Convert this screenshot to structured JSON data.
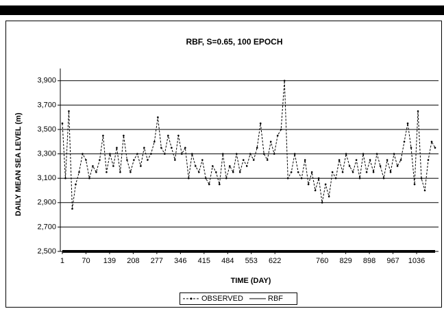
{
  "chart_data": {
    "type": "line",
    "title": "RBF, S=0.65, 100 EPOCH",
    "x_label": "TIME (DAY)",
    "y_label": "DAILY MEAN SEA LEVEL (m)",
    "x": [
      1,
      10,
      20,
      30,
      40,
      50,
      60,
      70,
      80,
      90,
      100,
      110,
      120,
      130,
      140,
      150,
      160,
      170,
      180,
      190,
      200,
      210,
      220,
      230,
      240,
      250,
      260,
      270,
      280,
      290,
      300,
      310,
      320,
      330,
      340,
      350,
      360,
      370,
      380,
      390,
      400,
      410,
      420,
      430,
      440,
      450,
      460,
      470,
      480,
      490,
      500,
      510,
      520,
      530,
      540,
      550,
      560,
      570,
      580,
      590,
      600,
      610,
      620,
      630,
      640,
      650,
      660,
      670,
      680,
      690,
      700,
      710,
      720,
      730,
      740,
      750,
      760,
      770,
      780,
      790,
      800,
      810,
      820,
      830,
      840,
      850,
      860,
      870,
      880,
      890,
      900,
      910,
      920,
      930,
      940,
      950,
      960,
      970,
      980,
      990,
      1000,
      1010,
      1020,
      1030,
      1040,
      1050,
      1060,
      1070,
      1080,
      1090
    ],
    "series": [
      {
        "name": "OBSERVED",
        "color": "#000000",
        "values": [
          3550,
          3100,
          3650,
          2850,
          3050,
          3150,
          3300,
          3250,
          3100,
          3200,
          3150,
          3250,
          3450,
          3150,
          3300,
          3200,
          3350,
          3150,
          3450,
          3250,
          3150,
          3250,
          3300,
          3200,
          3350,
          3250,
          3300,
          3400,
          3600,
          3350,
          3300,
          3450,
          3350,
          3250,
          3450,
          3300,
          3350,
          3100,
          3300,
          3200,
          3150,
          3250,
          3100,
          3050,
          3200,
          3150,
          3050,
          3300,
          3100,
          3200,
          3150,
          3300,
          3150,
          3250,
          3200,
          3300,
          3250,
          3350,
          3550,
          3300,
          3250,
          3400,
          3300,
          3450,
          3500,
          3900,
          3100,
          3150,
          3300,
          3150,
          3100,
          3250,
          3050,
          3150,
          3000,
          3100,
          2900,
          3050,
          2950,
          3150,
          3100,
          3250,
          3150,
          3300,
          3200,
          3150,
          3250,
          3100,
          3300,
          3150,
          3250,
          3150,
          3300,
          3200,
          3100,
          3250,
          3150,
          3300,
          3200,
          3250,
          3400,
          3550,
          3350,
          3050,
          3650,
          3100,
          3000,
          3250,
          3400,
          3350
        ]
      },
      {
        "name": "RBF",
        "color": "#000000",
        "x": [
          1,
          1090
        ],
        "values": [
          2500,
          2500
        ]
      }
    ],
    "xlim": [
      -5,
      1100
    ],
    "xticks": [
      1,
      70,
      139,
      208,
      277,
      346,
      415,
      484,
      553,
      622,
      760,
      829,
      898,
      967,
      1036
    ],
    "ylim": [
      2500,
      4000
    ],
    "yticks": [
      {
        "value": 2500,
        "label": "2,500"
      },
      {
        "value": 2700,
        "label": "2,700"
      },
      {
        "value": 2900,
        "label": "2,900"
      },
      {
        "value": 3100,
        "label": "3,100"
      },
      {
        "value": 3300,
        "label": "3,300"
      },
      {
        "value": 3500,
        "label": "3,500"
      },
      {
        "value": 3700,
        "label": "3,700"
      },
      {
        "value": 3900,
        "label": "3,900"
      }
    ],
    "grid": true,
    "legend": "bottom"
  }
}
